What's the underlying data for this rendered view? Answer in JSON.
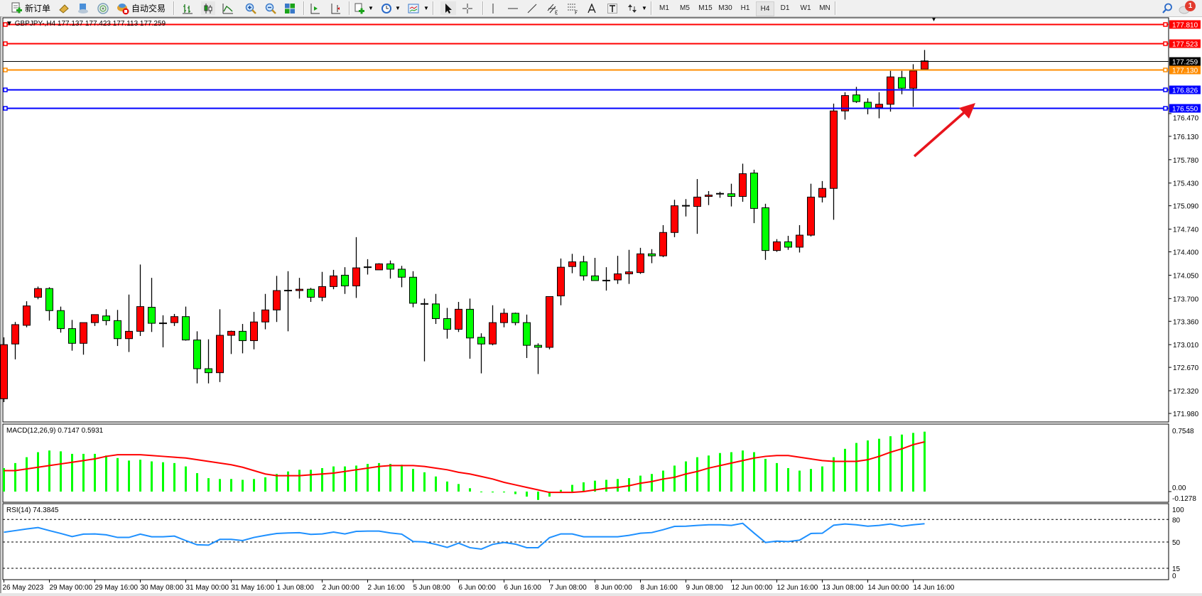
{
  "toolbar": {
    "new_order": "新订单",
    "auto_trading": "自动交易",
    "periods": [
      "M1",
      "M5",
      "M15",
      "M30",
      "H1",
      "H4",
      "D1",
      "W1",
      "MN"
    ],
    "active_period": "H4",
    "notification_count": "1"
  },
  "chart_header": {
    "text": "GBPJPY-,H4  177.137 177.423 177.113 177.259"
  },
  "colors": {
    "bull": "#ff0000",
    "bear": "#00ff00",
    "macd_hist": "#00ff00",
    "macd_signal": "#ff0000",
    "rsi_line": "#1e90ff",
    "resistance": "#ff0000",
    "pivot": "#ff8c00",
    "support": "#0000ff",
    "bid_line": "#000000",
    "arrow": "#e8141c"
  },
  "levels": [
    {
      "price": "177.810",
      "color": "#ff0000",
      "type": "resistance"
    },
    {
      "price": "177.523",
      "color": "#ff0000",
      "type": "resistance"
    },
    {
      "price": "177.259",
      "color": "#000000",
      "type": "bid"
    },
    {
      "price": "177.130",
      "color": "#ff8c00",
      "type": "pivot"
    },
    {
      "price": "176.826",
      "color": "#0000ff",
      "type": "support"
    },
    {
      "price": "176.550",
      "color": "#0000ff",
      "type": "support"
    }
  ],
  "price_axis": [
    "176.470",
    "176.130",
    "175.780",
    "175.430",
    "175.090",
    "174.740",
    "174.400",
    "174.050",
    "173.700",
    "173.360",
    "173.010",
    "172.670",
    "172.320",
    "171.980"
  ],
  "time_axis": [
    "26 May 2023",
    "29 May 00:00",
    "29 May 16:00",
    "30 May 08:00",
    "31 May 00:00",
    "31 May 16:00",
    "1 Jun 08:00",
    "2 Jun 00:00",
    "2 Jun 16:00",
    "5 Jun 08:00",
    "6 Jun 00:00",
    "6 Jun 16:00",
    "7 Jun 08:00",
    "8 Jun 00:00",
    "8 Jun 16:00",
    "9 Jun 08:00",
    "12 Jun 00:00",
    "12 Jun 16:00",
    "13 Jun 08:00",
    "14 Jun 00:00",
    "14 Jun 16:00"
  ],
  "macd": {
    "label": "MACD(12,26,9) 0.7147 0.5931",
    "axis": [
      "0.7548",
      "0.00",
      "-0.1278"
    ]
  },
  "rsi": {
    "label": "RSI(14) 74.3845",
    "axis": [
      "100",
      "80",
      "50",
      "15",
      "0"
    ]
  },
  "chart_data": {
    "type": "candlestick",
    "symbol": "GBPJPY-",
    "timeframe": "H4",
    "ylim": [
      171.98,
      177.81
    ],
    "ohlc": [
      [
        172.2,
        173.12,
        172.15,
        173.01
      ],
      [
        173.02,
        173.35,
        172.79,
        173.31
      ],
      [
        173.3,
        173.66,
        173.27,
        173.59
      ],
      [
        173.72,
        173.88,
        173.69,
        173.85
      ],
      [
        173.85,
        173.87,
        173.37,
        173.52
      ],
      [
        173.52,
        173.58,
        173.19,
        173.25
      ],
      [
        173.25,
        173.38,
        172.92,
        173.03
      ],
      [
        173.03,
        173.34,
        172.86,
        173.34
      ],
      [
        173.34,
        173.46,
        173.29,
        173.46
      ],
      [
        173.44,
        173.54,
        173.3,
        173.37
      ],
      [
        173.37,
        173.53,
        172.99,
        173.1
      ],
      [
        173.1,
        173.76,
        172.9,
        173.21
      ],
      [
        173.21,
        174.21,
        173.14,
        173.58
      ],
      [
        173.57,
        174.01,
        173.2,
        173.33
      ],
      [
        173.33,
        173.45,
        172.97,
        173.33
      ],
      [
        173.34,
        173.47,
        173.29,
        173.43
      ],
      [
        173.43,
        173.58,
        173.07,
        173.08
      ],
      [
        173.08,
        173.21,
        172.43,
        172.65
      ],
      [
        172.65,
        173.09,
        172.43,
        172.59
      ],
      [
        172.59,
        173.54,
        172.45,
        173.15
      ],
      [
        173.15,
        173.22,
        172.87,
        173.21
      ],
      [
        173.21,
        173.32,
        172.88,
        173.07
      ],
      [
        173.07,
        173.5,
        172.94,
        173.35
      ],
      [
        173.35,
        173.77,
        173.24,
        173.53
      ],
      [
        173.53,
        174.04,
        173.35,
        173.82
      ],
      [
        173.82,
        174.11,
        173.21,
        173.82
      ],
      [
        173.82,
        174.01,
        173.7,
        173.84
      ],
      [
        173.84,
        173.86,
        173.65,
        173.72
      ],
      [
        173.72,
        174.1,
        173.66,
        173.88
      ],
      [
        173.88,
        174.13,
        173.84,
        174.04
      ],
      [
        174.05,
        174.17,
        173.77,
        173.89
      ],
      [
        173.89,
        174.62,
        173.71,
        174.16
      ],
      [
        174.17,
        174.29,
        174.06,
        174.17
      ],
      [
        174.13,
        174.23,
        174.13,
        174.22
      ],
      [
        174.22,
        174.27,
        174.0,
        174.14
      ],
      [
        174.14,
        174.19,
        173.87,
        174.02
      ],
      [
        174.02,
        174.11,
        173.57,
        173.63
      ],
      [
        173.62,
        173.7,
        172.76,
        173.62
      ],
      [
        173.62,
        173.77,
        173.32,
        173.4
      ],
      [
        173.4,
        173.56,
        173.1,
        173.24
      ],
      [
        173.24,
        173.65,
        173.2,
        173.54
      ],
      [
        173.54,
        173.7,
        172.8,
        173.11
      ],
      [
        173.12,
        173.18,
        172.58,
        173.02
      ],
      [
        173.02,
        173.6,
        173.0,
        173.34
      ],
      [
        173.34,
        173.55,
        173.27,
        173.48
      ],
      [
        173.48,
        173.49,
        173.3,
        173.34
      ],
      [
        173.34,
        173.46,
        172.81,
        173.0
      ],
      [
        173.0,
        173.03,
        172.57,
        172.97
      ],
      [
        172.97,
        173.73,
        172.94,
        173.73
      ],
      [
        173.74,
        174.3,
        173.6,
        174.17
      ],
      [
        174.18,
        174.37,
        174.08,
        174.25
      ],
      [
        174.25,
        174.34,
        173.97,
        174.04
      ],
      [
        174.04,
        174.31,
        173.97,
        173.97
      ],
      [
        173.97,
        174.17,
        173.82,
        173.97
      ],
      [
        173.98,
        174.34,
        173.92,
        174.07
      ],
      [
        174.07,
        174.43,
        173.92,
        174.1
      ],
      [
        174.09,
        174.46,
        174.07,
        174.37
      ],
      [
        174.37,
        174.44,
        174.23,
        174.34
      ],
      [
        174.34,
        174.8,
        174.32,
        174.69
      ],
      [
        174.69,
        175.18,
        174.62,
        175.09
      ],
      [
        175.09,
        175.19,
        174.93,
        175.09
      ],
      [
        175.08,
        175.49,
        174.67,
        175.22
      ],
      [
        175.23,
        175.31,
        175.1,
        175.25
      ],
      [
        175.27,
        175.3,
        175.21,
        175.27
      ],
      [
        175.27,
        175.42,
        175.08,
        175.23
      ],
      [
        175.23,
        175.72,
        175.15,
        175.57
      ],
      [
        175.58,
        175.63,
        174.83,
        175.05
      ],
      [
        175.06,
        175.12,
        174.28,
        174.42
      ],
      [
        174.42,
        174.59,
        174.4,
        174.55
      ],
      [
        174.55,
        174.64,
        174.43,
        174.47
      ],
      [
        174.47,
        174.8,
        174.39,
        174.65
      ],
      [
        174.65,
        175.42,
        174.63,
        175.22
      ],
      [
        175.22,
        175.46,
        175.14,
        175.35
      ],
      [
        175.35,
        176.62,
        174.88,
        176.51
      ],
      [
        176.51,
        176.79,
        176.38,
        176.74
      ],
      [
        176.75,
        176.87,
        176.63,
        176.65
      ],
      [
        176.64,
        176.7,
        176.46,
        176.55
      ],
      [
        176.56,
        176.79,
        176.4,
        176.61
      ],
      [
        176.61,
        177.11,
        176.5,
        177.02
      ],
      [
        177.01,
        177.11,
        176.76,
        176.85
      ],
      [
        176.85,
        177.21,
        176.57,
        177.11
      ],
      [
        177.137,
        177.423,
        177.113,
        177.259
      ]
    ],
    "macd_hist": [
      0.28,
      0.34,
      0.41,
      0.47,
      0.49,
      0.48,
      0.45,
      0.45,
      0.45,
      0.43,
      0.4,
      0.37,
      0.38,
      0.36,
      0.35,
      0.34,
      0.3,
      0.22,
      0.16,
      0.15,
      0.15,
      0.14,
      0.15,
      0.17,
      0.21,
      0.24,
      0.26,
      0.26,
      0.28,
      0.3,
      0.3,
      0.31,
      0.33,
      0.34,
      0.33,
      0.32,
      0.27,
      0.23,
      0.18,
      0.12,
      0.09,
      0.04,
      -0.005,
      -0.01,
      -0.01,
      -0.03,
      -0.06,
      -0.1,
      -0.06,
      0.02,
      0.08,
      0.11,
      0.13,
      0.14,
      0.15,
      0.16,
      0.19,
      0.21,
      0.25,
      0.31,
      0.36,
      0.41,
      0.43,
      0.46,
      0.47,
      0.49,
      0.47,
      0.39,
      0.34,
      0.28,
      0.25,
      0.27,
      0.3,
      0.41,
      0.51,
      0.58,
      0.61,
      0.63,
      0.66,
      0.68,
      0.7,
      0.7147
    ],
    "macd_signal": [
      0.25,
      0.25,
      0.27,
      0.29,
      0.31,
      0.33,
      0.35,
      0.37,
      0.39,
      0.42,
      0.44,
      0.44,
      0.44,
      0.43,
      0.42,
      0.41,
      0.4,
      0.38,
      0.36,
      0.34,
      0.32,
      0.29,
      0.25,
      0.21,
      0.19,
      0.19,
      0.19,
      0.2,
      0.21,
      0.22,
      0.24,
      0.26,
      0.28,
      0.3,
      0.31,
      0.31,
      0.31,
      0.3,
      0.28,
      0.26,
      0.23,
      0.21,
      0.18,
      0.15,
      0.11,
      0.08,
      0.05,
      0.02,
      -0.01,
      -0.01,
      -0.01,
      0.0,
      0.02,
      0.04,
      0.05,
      0.07,
      0.1,
      0.12,
      0.15,
      0.17,
      0.21,
      0.24,
      0.28,
      0.31,
      0.34,
      0.37,
      0.4,
      0.42,
      0.43,
      0.43,
      0.41,
      0.39,
      0.37,
      0.36,
      0.36,
      0.36,
      0.38,
      0.42,
      0.47,
      0.51,
      0.56,
      0.5931
    ],
    "macd_ylim": [
      -0.1278,
      0.7548
    ],
    "rsi": [
      63.0,
      65.2,
      67.4,
      69.3,
      65.2,
      61.4,
      57.3,
      60.5,
      60.8,
      59.6,
      56.1,
      56.1,
      60.5,
      57.0,
      57.0,
      57.9,
      51.9,
      46.3,
      45.9,
      53.5,
      53.5,
      51.9,
      56.1,
      58.9,
      61.4,
      62.1,
      62.4,
      60.2,
      60.8,
      63.3,
      60.8,
      64.2,
      64.5,
      64.5,
      62.1,
      60.5,
      50.7,
      50.1,
      46.9,
      42.8,
      48.5,
      42.5,
      40.6,
      46.9,
      49.4,
      47.2,
      42.5,
      42.5,
      55.8,
      60.8,
      60.8,
      57.0,
      57.0,
      57.0,
      57.0,
      58.9,
      61.7,
      62.6,
      66.4,
      70.8,
      71.1,
      72.1,
      73.0,
      73.0,
      72.1,
      74.9,
      61.9,
      49.4,
      51.2,
      50.6,
      52.5,
      61.4,
      61.7,
      72.4,
      74.0,
      73.0,
      71.1,
      72.1,
      74.0,
      71.1,
      73.0,
      74.3845
    ],
    "rsi_levels": [
      80,
      50,
      15
    ],
    "rsi_ylim": [
      0,
      100
    ]
  }
}
